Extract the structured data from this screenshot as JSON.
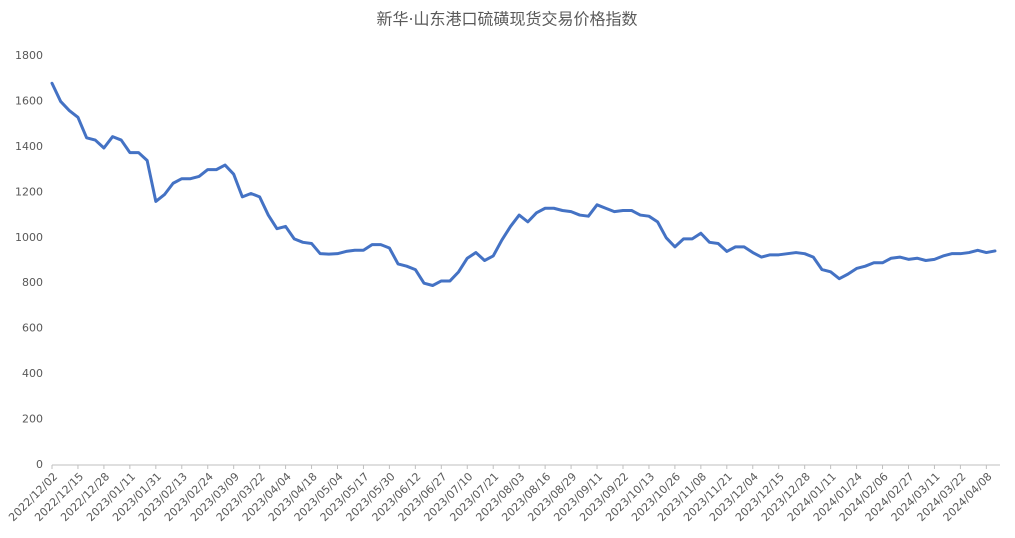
{
  "chart_data": {
    "type": "line",
    "title": "新华·山东港口硫磺现货交易价格指数",
    "color": "#4472c4",
    "categories": [
      "2022/12/02",
      null,
      null,
      "2022/12/15",
      null,
      null,
      "2022/12/28",
      null,
      null,
      "2023/01/11",
      null,
      null,
      "2023/01/31",
      null,
      null,
      "2023/02/13",
      null,
      null,
      "2023/02/24",
      null,
      null,
      "2023/03/09",
      null,
      null,
      "2023/03/22",
      null,
      null,
      "2023/04/04",
      null,
      null,
      "2023/04/18",
      null,
      null,
      "2023/05/04",
      null,
      null,
      "2023/05/17",
      null,
      null,
      "2023/05/30",
      null,
      null,
      "2023/06/12",
      null,
      null,
      "2023/06/27",
      null,
      null,
      "2023/07/10",
      null,
      null,
      "2023/07/21",
      null,
      null,
      "2023/08/03",
      null,
      null,
      "2023/08/16",
      null,
      null,
      "2023/08/29",
      null,
      null,
      "2023/09/11",
      null,
      null,
      "2023/09/22",
      null,
      null,
      "2023/10/13",
      null,
      null,
      "2023/10/26",
      null,
      null,
      "2023/11/08",
      null,
      null,
      "2023/11/21",
      null,
      null,
      "2023/12/04",
      null,
      null,
      "2023/12/15",
      null,
      null,
      "2023/12/28",
      null,
      null,
      "2024/01/11",
      null,
      null,
      "2024/01/24",
      null,
      null,
      "2024/02/06",
      null,
      null,
      "2024/02/27",
      null,
      null,
      "2024/03/11",
      null,
      null,
      "2024/03/22",
      null,
      null,
      "2024/04/08",
      null
    ],
    "values": [
      1680,
      1600,
      1560,
      1530,
      1440,
      1430,
      1395,
      1445,
      1430,
      1375,
      1375,
      1340,
      1160,
      1190,
      1240,
      1260,
      1260,
      1270,
      1300,
      1300,
      1320,
      1280,
      1180,
      1195,
      1180,
      1100,
      1040,
      1050,
      995,
      980,
      975,
      930,
      928,
      930,
      940,
      945,
      945,
      970,
      970,
      955,
      885,
      875,
      860,
      800,
      790,
      810,
      810,
      850,
      910,
      935,
      900,
      920,
      990,
      1050,
      1100,
      1070,
      1110,
      1130,
      1130,
      1120,
      1115,
      1100,
      1095,
      1145,
      1130,
      1115,
      1120,
      1120,
      1100,
      1095,
      1070,
      1000,
      960,
      995,
      995,
      1020,
      980,
      975,
      940,
      960,
      960,
      935,
      915,
      925,
      925,
      930,
      935,
      930,
      915,
      860,
      850,
      820,
      840,
      865,
      875,
      890,
      890,
      910,
      915,
      905,
      910,
      900,
      905,
      920,
      930,
      930,
      935,
      945,
      935,
      942
    ],
    "ylim": [
      0,
      1800
    ],
    "yticks": [
      0,
      200,
      400,
      600,
      800,
      1000,
      1200,
      1400,
      1600,
      1800
    ],
    "grid": false
  }
}
